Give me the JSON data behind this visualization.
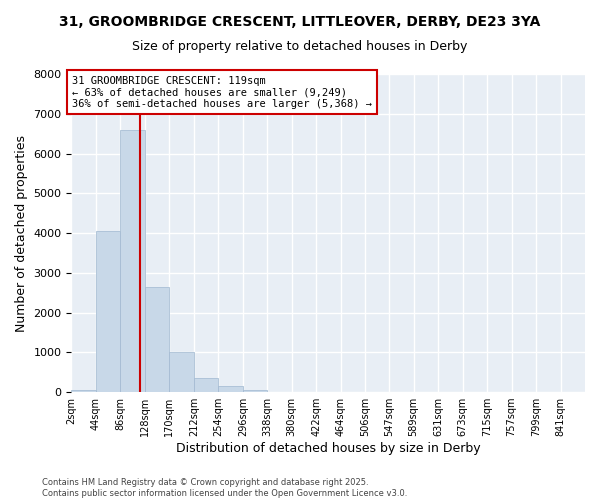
{
  "title_line1": "31, GROOMBRIDGE CRESCENT, LITTLEOVER, DERBY, DE23 3YA",
  "title_line2": "Size of property relative to detached houses in Derby",
  "xlabel": "Distribution of detached houses by size in Derby",
  "ylabel": "Number of detached properties",
  "bins": [
    2,
    44,
    86,
    128,
    170,
    212,
    254,
    296,
    338,
    380,
    422,
    464,
    506,
    547,
    589,
    631,
    673,
    715,
    757,
    799,
    841
  ],
  "bin_labels": [
    "2sqm",
    "44sqm",
    "86sqm",
    "128sqm",
    "170sqm",
    "212sqm",
    "254sqm",
    "296sqm",
    "338sqm",
    "380sqm",
    "422sqm",
    "464sqm",
    "506sqm",
    "547sqm",
    "589sqm",
    "631sqm",
    "673sqm",
    "715sqm",
    "757sqm",
    "799sqm",
    "841sqm"
  ],
  "bar_heights": [
    50,
    4050,
    6600,
    2650,
    1000,
    350,
    150,
    50,
    10,
    0,
    0,
    0,
    0,
    0,
    0,
    0,
    0,
    0,
    0,
    0
  ],
  "bar_color": "#c8d8e8",
  "bar_edge_color": "#a0b8d0",
  "vline_x": 119,
  "vline_color": "#cc0000",
  "ylim": [
    0,
    8000
  ],
  "yticks": [
    0,
    1000,
    2000,
    3000,
    4000,
    5000,
    6000,
    7000,
    8000
  ],
  "annotation_title": "31 GROOMBRIDGE CRESCENT: 119sqm",
  "annotation_line1": "← 63% of detached houses are smaller (9,249)",
  "annotation_line2": "36% of semi-detached houses are larger (5,368) →",
  "annotation_box_color": "#cc0000",
  "fig_facecolor": "#ffffff",
  "ax_facecolor": "#e8eef5",
  "grid_color": "#ffffff",
  "footnote1": "Contains HM Land Registry data © Crown copyright and database right 2025.",
  "footnote2": "Contains public sector information licensed under the Open Government Licence v3.0."
}
